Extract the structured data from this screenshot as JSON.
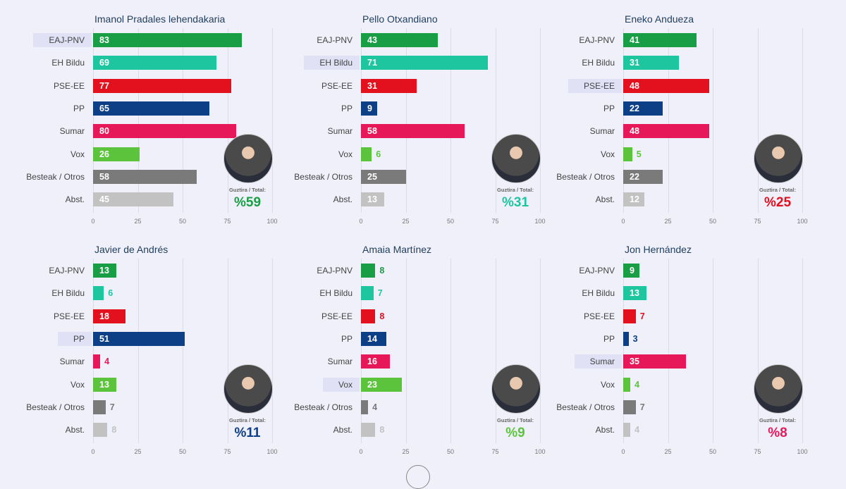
{
  "chart_data": [
    {
      "type": "bar",
      "title": "Imanol Pradales lehendakaria",
      "highlight": "EAJ-PNV",
      "total_label": "Guztira / Total:",
      "total": "%59",
      "total_color": "#1a9e45",
      "values": [
        83,
        69,
        77,
        65,
        80,
        26,
        58,
        45
      ]
    },
    {
      "type": "bar",
      "title": "Pello Otxandiano",
      "highlight": "EH Bildu",
      "total_label": "Guztira / Total:",
      "total": "%31",
      "total_color": "#1ec6a0",
      "values": [
        43,
        71,
        31,
        9,
        58,
        6,
        25,
        13
      ]
    },
    {
      "type": "bar",
      "title": "Eneko Andueza",
      "highlight": "PSE-EE",
      "total_label": "Guztira / Total:",
      "total": "%25",
      "total_color": "#e3101d",
      "values": [
        41,
        31,
        48,
        22,
        48,
        5,
        22,
        12
      ]
    },
    {
      "type": "bar",
      "title": "Javier de Andrés",
      "highlight": "PP",
      "total_label": "Guztira / Total:",
      "total": "%11",
      "total_color": "#0d3f86",
      "values": [
        13,
        6,
        18,
        51,
        4,
        13,
        7,
        8
      ]
    },
    {
      "type": "bar",
      "title": "Amaia Martínez",
      "highlight": "Vox",
      "total_label": "Guztira / Total:",
      "total": "%9",
      "total_color": "#5cc43c",
      "values": [
        8,
        7,
        8,
        14,
        16,
        23,
        4,
        8
      ]
    },
    {
      "type": "bar",
      "title": "Jon Hernández",
      "highlight": "Sumar",
      "total_label": "Guztira / Total:",
      "total": "%8",
      "total_color": "#e6185a",
      "values": [
        9,
        13,
        7,
        3,
        35,
        4,
        7,
        4
      ]
    }
  ],
  "categories": [
    "EAJ-PNV",
    "EH Bildu",
    "PSE-EE",
    "PP",
    "Sumar",
    "Vox",
    "Besteak / Otros",
    "Abst."
  ],
  "colors": [
    "#1a9e45",
    "#1ec6a0",
    "#e3101d",
    "#0d3f86",
    "#e6185a",
    "#5cc43c",
    "#7a7a7a",
    "#c2c2c2"
  ],
  "xlim": [
    0,
    100
  ],
  "ticks": [
    "0",
    "25",
    "50",
    "75",
    "100"
  ]
}
